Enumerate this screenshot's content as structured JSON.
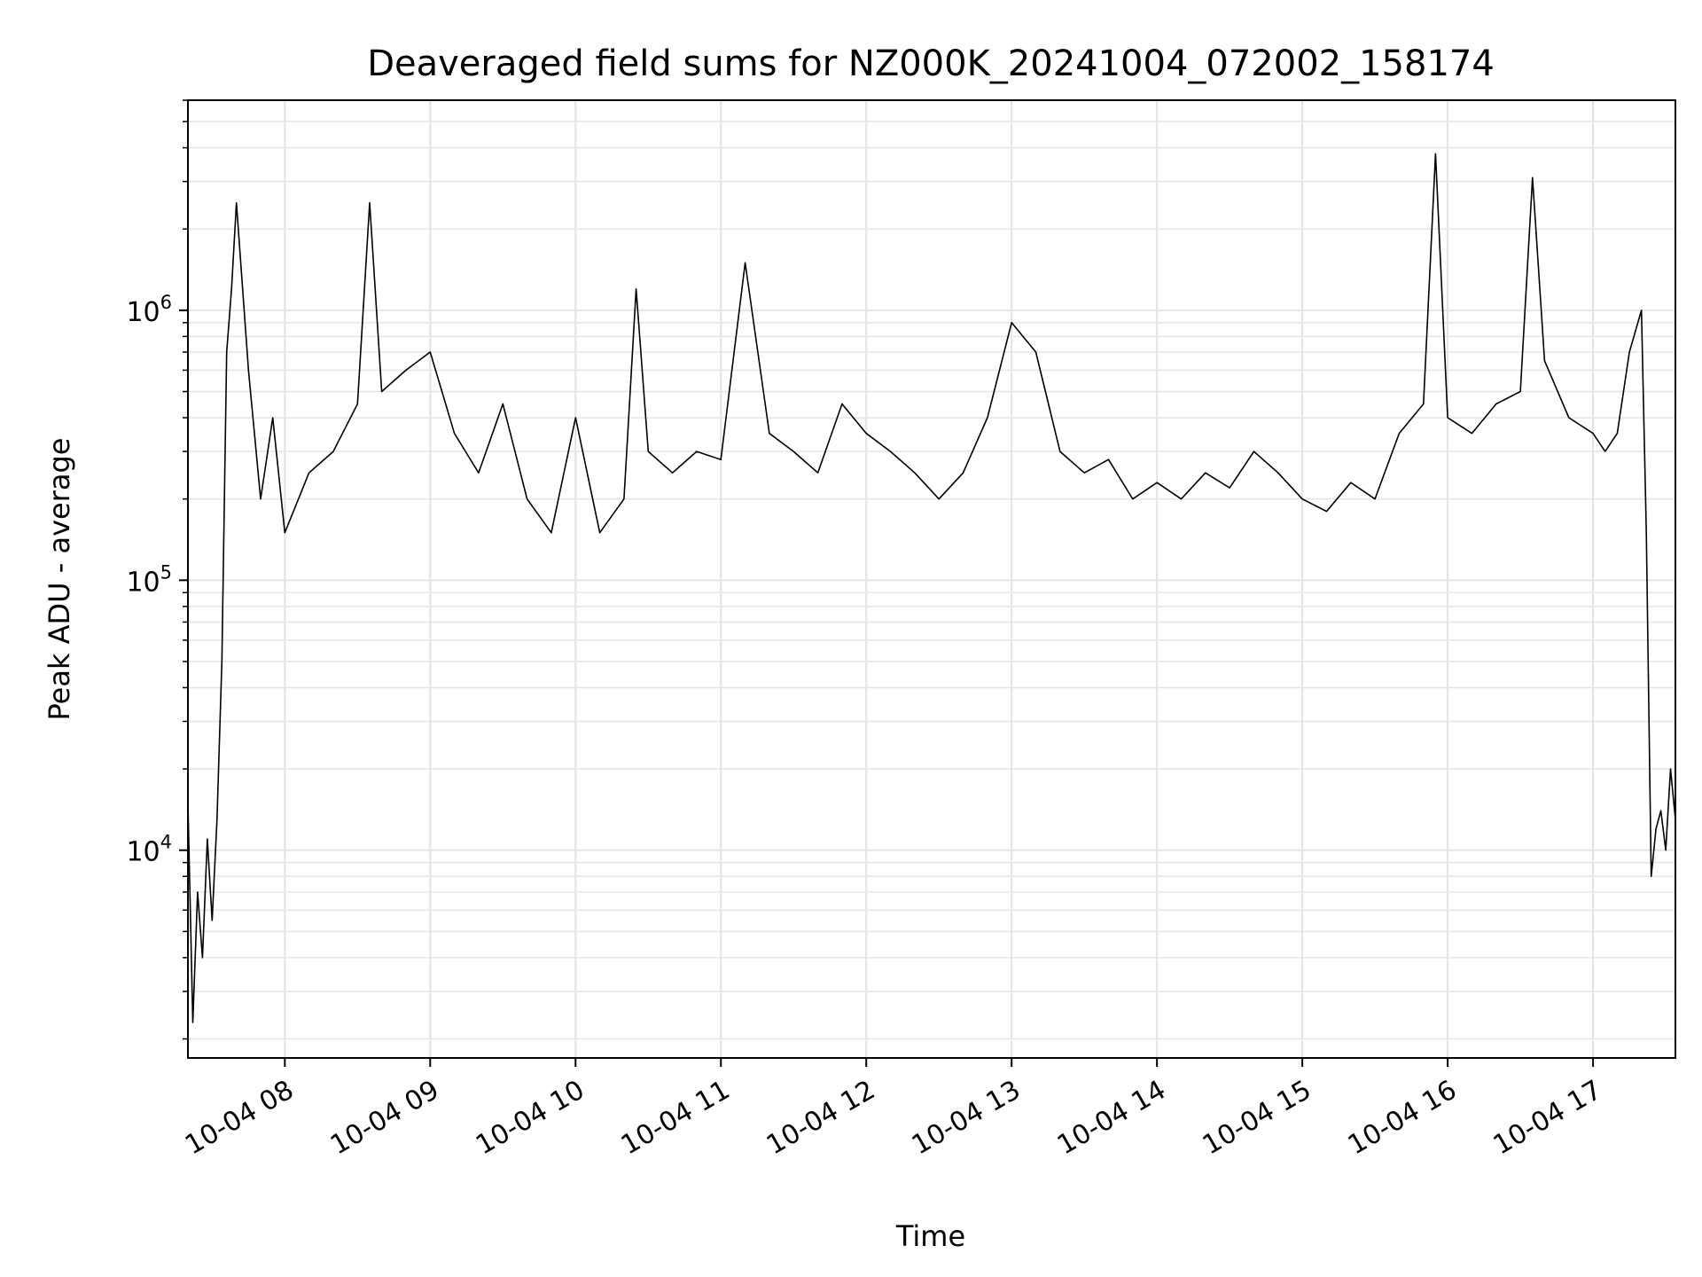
{
  "chart_data": {
    "type": "line",
    "title": "Deaveraged field sums for NZ000K_20241004_072002_158174",
    "xlabel": "Time",
    "ylabel": "Peak ADU - average",
    "y_scale": "log",
    "ylim": [
      1700,
      6000000
    ],
    "xlim": [
      "2024-10-04 07:20",
      "2024-10-04 17:34"
    ],
    "grid": true,
    "x_ticks": [
      {
        "t": "2024-10-04 08:00",
        "label": "10-04 08"
      },
      {
        "t": "2024-10-04 09:00",
        "label": "10-04 09"
      },
      {
        "t": "2024-10-04 10:00",
        "label": "10-04 10"
      },
      {
        "t": "2024-10-04 11:00",
        "label": "10-04 11"
      },
      {
        "t": "2024-10-04 12:00",
        "label": "10-04 12"
      },
      {
        "t": "2024-10-04 13:00",
        "label": "10-04 13"
      },
      {
        "t": "2024-10-04 14:00",
        "label": "10-04 14"
      },
      {
        "t": "2024-10-04 15:00",
        "label": "10-04 15"
      },
      {
        "t": "2024-10-04 16:00",
        "label": "10-04 16"
      },
      {
        "t": "2024-10-04 17:00",
        "label": "10-04 17"
      }
    ],
    "y_ticks": [
      {
        "value": 10000,
        "base": "10",
        "exp": "4"
      },
      {
        "value": 100000,
        "base": "10",
        "exp": "5"
      },
      {
        "value": 1000000,
        "base": "10",
        "exp": "6"
      }
    ],
    "series": [
      {
        "color": "#000000",
        "x": [
          "2024-10-04 07:20",
          "2024-10-04 07:22",
          "2024-10-04 07:24",
          "2024-10-04 07:26",
          "2024-10-04 07:28",
          "2024-10-04 07:30",
          "2024-10-04 07:32",
          "2024-10-04 07:34",
          "2024-10-04 07:36",
          "2024-10-04 07:38",
          "2024-10-04 07:40",
          "2024-10-04 07:45",
          "2024-10-04 07:50",
          "2024-10-04 07:55",
          "2024-10-04 08:00",
          "2024-10-04 08:10",
          "2024-10-04 08:20",
          "2024-10-04 08:30",
          "2024-10-04 08:35",
          "2024-10-04 08:40",
          "2024-10-04 08:50",
          "2024-10-04 09:00",
          "2024-10-04 09:10",
          "2024-10-04 09:20",
          "2024-10-04 09:30",
          "2024-10-04 09:40",
          "2024-10-04 09:50",
          "2024-10-04 10:00",
          "2024-10-04 10:10",
          "2024-10-04 10:20",
          "2024-10-04 10:25",
          "2024-10-04 10:30",
          "2024-10-04 10:40",
          "2024-10-04 10:50",
          "2024-10-04 11:00",
          "2024-10-04 11:10",
          "2024-10-04 11:20",
          "2024-10-04 11:30",
          "2024-10-04 11:40",
          "2024-10-04 11:50",
          "2024-10-04 12:00",
          "2024-10-04 12:10",
          "2024-10-04 12:20",
          "2024-10-04 12:30",
          "2024-10-04 12:40",
          "2024-10-04 12:50",
          "2024-10-04 13:00",
          "2024-10-04 13:10",
          "2024-10-04 13:20",
          "2024-10-04 13:30",
          "2024-10-04 13:40",
          "2024-10-04 13:50",
          "2024-10-04 14:00",
          "2024-10-04 14:10",
          "2024-10-04 14:20",
          "2024-10-04 14:30",
          "2024-10-04 14:40",
          "2024-10-04 14:50",
          "2024-10-04 15:00",
          "2024-10-04 15:10",
          "2024-10-04 15:20",
          "2024-10-04 15:30",
          "2024-10-04 15:40",
          "2024-10-04 15:50",
          "2024-10-04 15:55",
          "2024-10-04 16:00",
          "2024-10-04 16:10",
          "2024-10-04 16:20",
          "2024-10-04 16:30",
          "2024-10-04 16:35",
          "2024-10-04 16:40",
          "2024-10-04 16:50",
          "2024-10-04 17:00",
          "2024-10-04 17:05",
          "2024-10-04 17:10",
          "2024-10-04 17:15",
          "2024-10-04 17:20",
          "2024-10-04 17:22",
          "2024-10-04 17:24",
          "2024-10-04 17:26",
          "2024-10-04 17:28",
          "2024-10-04 17:30",
          "2024-10-04 17:32",
          "2024-10-04 17:34"
        ],
        "y": [
          15000,
          2300,
          7000,
          4000,
          11000,
          5500,
          13000,
          50000,
          700000,
          1200000,
          2500000,
          600000,
          200000,
          400000,
          150000,
          250000,
          300000,
          450000,
          2500000,
          500000,
          600000,
          700000,
          350000,
          250000,
          450000,
          200000,
          150000,
          400000,
          150000,
          200000,
          1200000,
          300000,
          250000,
          300000,
          280000,
          1500000,
          350000,
          300000,
          250000,
          450000,
          350000,
          300000,
          250000,
          200000,
          250000,
          400000,
          900000,
          700000,
          300000,
          250000,
          280000,
          200000,
          230000,
          200000,
          250000,
          220000,
          300000,
          250000,
          200000,
          180000,
          230000,
          200000,
          350000,
          450000,
          3800000,
          400000,
          350000,
          450000,
          500000,
          3100000,
          650000,
          400000,
          350000,
          300000,
          350000,
          700000,
          1000000,
          150000,
          8000,
          12000,
          14000,
          10000,
          20000,
          13000
        ]
      }
    ]
  }
}
